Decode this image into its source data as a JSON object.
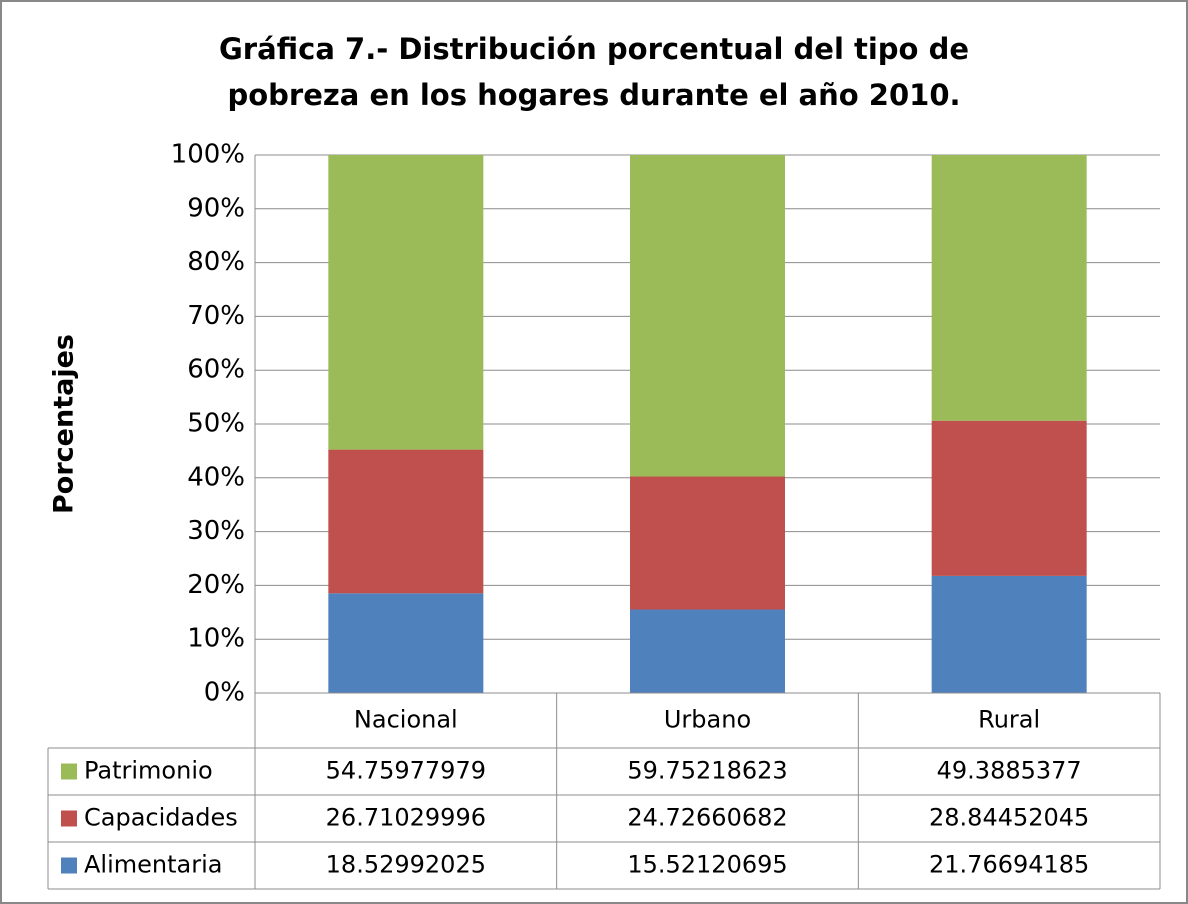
{
  "chart_data": {
    "type": "stacked_bar",
    "title": "Gráfica 7.- Distribución porcentual del tipo de pobreza en los hogares durante el año 2010.",
    "y_label": "Porcentajes",
    "categories": [
      "Nacional",
      "Urbano",
      "Rural"
    ],
    "series": [
      {
        "name": "Patrimonio",
        "color": "#9bbb59",
        "values": [
          54.75977979,
          59.75218623,
          49.3885377
        ]
      },
      {
        "name": "Capacidades",
        "color": "#c0504d",
        "values": [
          26.71029996,
          24.72660682,
          28.84452045
        ]
      },
      {
        "name": "Alimentaria",
        "color": "#4f81bd",
        "values": [
          18.52992025,
          15.52120695,
          21.76694185
        ]
      }
    ],
    "ylim": [
      0,
      100
    ],
    "yticks": [
      {
        "value": 0,
        "label": "0%"
      },
      {
        "value": 10,
        "label": "10%"
      },
      {
        "value": 20,
        "label": "20%"
      },
      {
        "value": 30,
        "label": "30%"
      },
      {
        "value": 40,
        "label": "40%"
      },
      {
        "value": 50,
        "label": "50%"
      },
      {
        "value": 60,
        "label": "60%"
      },
      {
        "value": 70,
        "label": "70%"
      },
      {
        "value": 80,
        "label": "80%"
      },
      {
        "value": 90,
        "label": "90%"
      },
      {
        "value": 100,
        "label": "100%"
      }
    ],
    "grid": true
  }
}
